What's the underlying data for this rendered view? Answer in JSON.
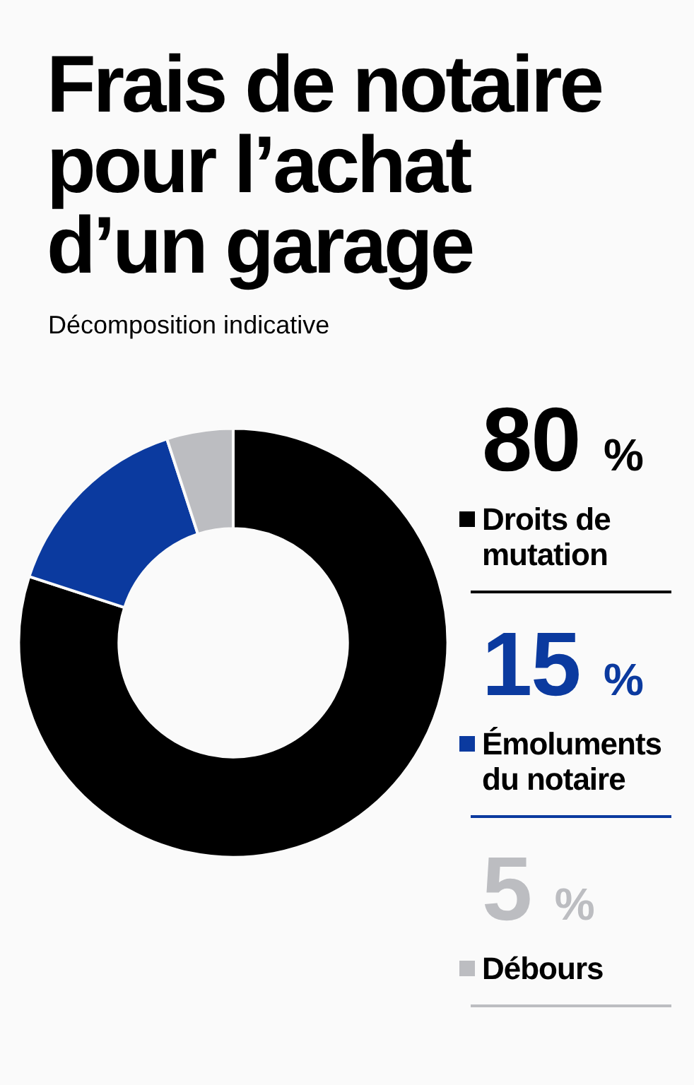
{
  "chart_data": {
    "type": "donut",
    "title": "Frais de notaire pour l’achat d’un garage",
    "subtitle": "Décomposition indicative",
    "categories": [
      "Droits de mutation",
      "Émoluments du notaire",
      "Débours"
    ],
    "values": [
      80,
      15,
      5
    ],
    "colors": [
      "#000000",
      "#0b3a9f",
      "#bcbdc1"
    ],
    "value_labels": [
      "80 %",
      "15 %",
      "5 %"
    ],
    "legend": "right"
  }
}
